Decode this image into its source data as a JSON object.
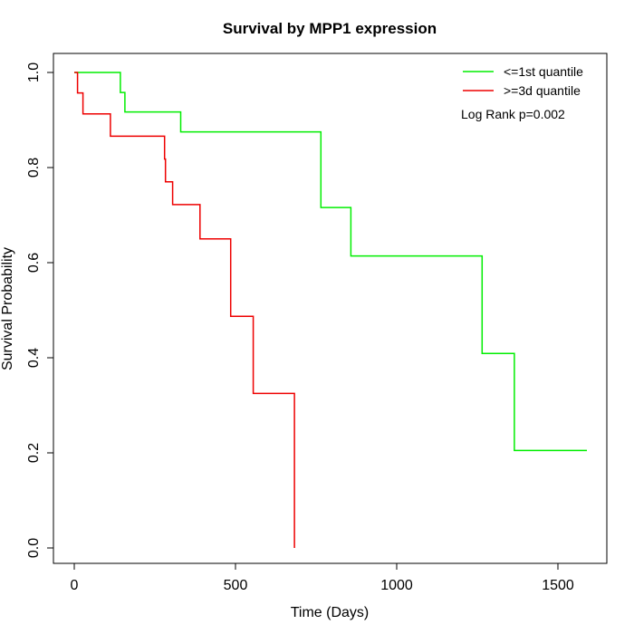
{
  "chart_data": {
    "type": "line",
    "title": "Survival by MPP1 expression",
    "xlabel": "Time (Days)",
    "ylabel": "Survival Probability",
    "xlim": [
      0,
      1600
    ],
    "ylim": [
      0,
      1.0
    ],
    "xticks": [
      0,
      500,
      1000,
      1500
    ],
    "yticks": [
      0.0,
      0.2,
      0.4,
      0.6,
      0.8,
      1.0
    ],
    "xtick_labels": [
      "0",
      "500",
      "1000",
      "1500"
    ],
    "ytick_labels": [
      "0.0",
      "0.2",
      "0.4",
      "0.6",
      "0.8",
      "1.0"
    ],
    "grid": false,
    "legend_position": "top-right",
    "series": [
      {
        "name": "<=1st quantile",
        "color": "#00ee00",
        "step": true,
        "x": [
          0,
          143,
          157,
          330,
          765,
          858,
          1265,
          1365,
          1590
        ],
        "y": [
          1.0,
          0.958,
          0.917,
          0.875,
          0.716,
          0.614,
          0.409,
          0.205,
          0.205
        ]
      },
      {
        "name": ">=3d quantile",
        "color": "#ee0000",
        "step": true,
        "x": [
          0,
          10,
          27,
          112,
          280,
          283,
          290,
          305,
          390,
          485,
          555,
          683
        ],
        "y": [
          1.0,
          0.957,
          0.913,
          0.866,
          0.818,
          0.77,
          0.77,
          0.722,
          0.65,
          0.487,
          0.325,
          0.0
        ]
      }
    ],
    "annotation": "Log Rank p=0.002"
  }
}
